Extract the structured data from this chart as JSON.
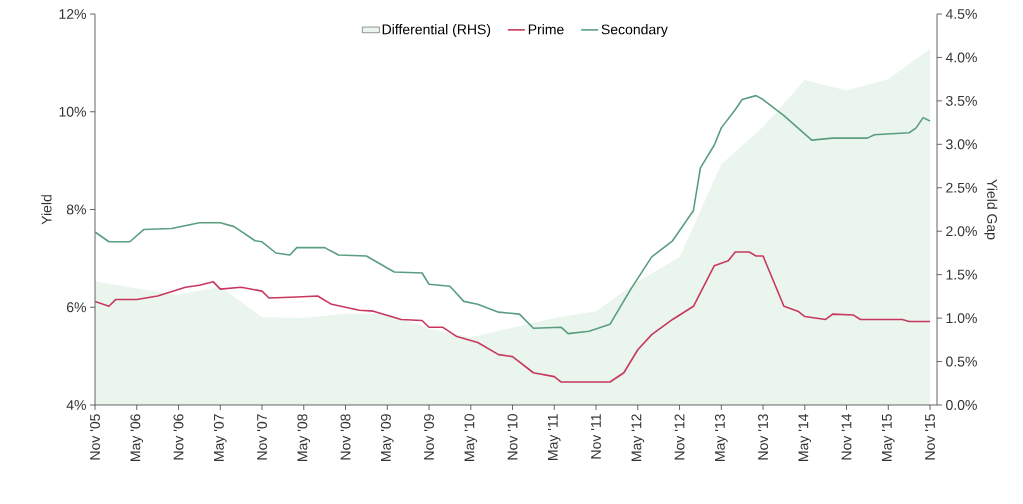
{
  "chart_data": {
    "type": "line",
    "ylabel": "Yield",
    "y2label": "Yield Gap",
    "legend": "top",
    "xlim": [
      "2005-11",
      "2015-12"
    ],
    "xticks": [
      {
        "value": "2005-11",
        "label": "Nov '05"
      },
      {
        "value": "2006-05",
        "label": "May '06"
      },
      {
        "value": "2006-11",
        "label": "Nov '06"
      },
      {
        "value": "2007-05",
        "label": "May '07"
      },
      {
        "value": "2007-11",
        "label": "Nov '07"
      },
      {
        "value": "2008-05",
        "label": "May '08"
      },
      {
        "value": "2008-11",
        "label": "Nov '08"
      },
      {
        "value": "2009-05",
        "label": "May '09"
      },
      {
        "value": "2009-11",
        "label": "Nov '09"
      },
      {
        "value": "2010-05",
        "label": "May '10"
      },
      {
        "value": "2010-11",
        "label": "Nov '10"
      },
      {
        "value": "2011-05",
        "label": "May '11"
      },
      {
        "value": "2011-11",
        "label": "Nov '11"
      },
      {
        "value": "2012-05",
        "label": "May '12"
      },
      {
        "value": "2012-11",
        "label": "Nov '12"
      },
      {
        "value": "2013-05",
        "label": "May '13"
      },
      {
        "value": "2013-11",
        "label": "Nov '13"
      },
      {
        "value": "2014-05",
        "label": "May '14"
      },
      {
        "value": "2014-11",
        "label": "Nov '14"
      },
      {
        "value": "2015-05",
        "label": "May '15"
      },
      {
        "value": "2015-11",
        "label": "Nov '15"
      }
    ],
    "ylim": [
      4,
      12
    ],
    "yticks": [
      {
        "value": 4,
        "label": "4%"
      },
      {
        "value": 6,
        "label": "6%"
      },
      {
        "value": 8,
        "label": "8%"
      },
      {
        "value": 10,
        "label": "10%"
      },
      {
        "value": 12,
        "label": "12%"
      }
    ],
    "y2lim": [
      0,
      4.5
    ],
    "y2ticks": [
      {
        "value": 0,
        "label": "0.0%"
      },
      {
        "value": 0.5,
        "label": "0.5%"
      },
      {
        "value": 1,
        "label": "1.0%"
      },
      {
        "value": 1.5,
        "label": "1.5%"
      },
      {
        "value": 2,
        "label": "2.0%"
      },
      {
        "value": 2.5,
        "label": "2.5%"
      },
      {
        "value": 3,
        "label": "3.0%"
      },
      {
        "value": 3.5,
        "label": "3.5%"
      },
      {
        "value": 4,
        "label": "4.0%"
      },
      {
        "value": 4.5,
        "label": "4.5%"
      }
    ],
    "series": [
      {
        "name": "Differential (RHS)",
        "type": "area",
        "axis": "y2",
        "color": "#eaf5ee",
        "x": [
          "2005-11",
          "2006-05",
          "2006-11",
          "2007-05",
          "2007-11",
          "2008-05",
          "2008-11",
          "2009-05",
          "2009-11",
          "2010-05",
          "2010-11",
          "2011-05",
          "2011-11",
          "2012-05",
          "2012-11",
          "2013-05",
          "2013-11",
          "2014-05",
          "2014-11",
          "2015-05",
          "2015-11"
        ],
        "values": [
          1.42,
          1.34,
          1.27,
          1.36,
          1.01,
          1.0,
          1.05,
          1.05,
          0.88,
          0.78,
          0.89,
          1.0,
          1.08,
          1.42,
          1.7,
          2.77,
          3.2,
          3.74,
          3.62,
          3.75,
          4.1
        ]
      },
      {
        "name": "Prime",
        "color": "#c8385e",
        "x": [
          "2005-11",
          "2006-01",
          "2006-02",
          "2006-05",
          "2006-08",
          "2006-12",
          "2007-02",
          "2007-04",
          "2007-05",
          "2007-08",
          "2007-11",
          "2007-12",
          "2008-04",
          "2008-07",
          "2008-09",
          "2009-01",
          "2009-03",
          "2009-07",
          "2009-10",
          "2009-11",
          "2010-01",
          "2010-03",
          "2010-06",
          "2010-09",
          "2010-11",
          "2011-02",
          "2011-05",
          "2011-06",
          "2012-01",
          "2012-03",
          "2012-05",
          "2012-07",
          "2012-10",
          "2013-01",
          "2013-04",
          "2013-06",
          "2013-07",
          "2013-09",
          "2013-10",
          "2013-11",
          "2014-02",
          "2014-04",
          "2014-05",
          "2014-08",
          "2014-09",
          "2014-12",
          "2015-01",
          "2015-07",
          "2015-08",
          "2015-11"
        ],
        "values": [
          6.12,
          6.02,
          6.16,
          6.16,
          6.23,
          6.41,
          6.45,
          6.52,
          6.37,
          6.41,
          6.33,
          6.19,
          6.21,
          6.23,
          6.06,
          5.94,
          5.92,
          5.75,
          5.73,
          5.59,
          5.59,
          5.4,
          5.28,
          5.03,
          4.99,
          4.66,
          4.58,
          4.47,
          4.47,
          4.66,
          5.13,
          5.44,
          5.75,
          6.02,
          6.85,
          6.95,
          7.13,
          7.13,
          7.05,
          7.05,
          6.02,
          5.92,
          5.81,
          5.75,
          5.86,
          5.84,
          5.75,
          5.75,
          5.71,
          5.71
        ]
      },
      {
        "name": "Secondary",
        "color": "#5a9e80",
        "x": [
          "2005-11",
          "2006-01",
          "2006-04",
          "2006-06",
          "2006-10",
          "2007-02",
          "2007-05",
          "2007-07",
          "2007-10",
          "2007-11",
          "2008-01",
          "2008-03",
          "2008-04",
          "2008-08",
          "2008-10",
          "2009-02",
          "2009-06",
          "2009-10",
          "2009-11",
          "2010-02",
          "2010-04",
          "2010-06",
          "2010-09",
          "2010-12",
          "2011-02",
          "2011-06",
          "2011-07",
          "2011-10",
          "2012-01",
          "2012-04",
          "2012-07",
          "2012-10",
          "2013-01",
          "2013-02",
          "2013-04",
          "2013-05",
          "2013-07",
          "2013-08",
          "2013-10",
          "2013-11",
          "2014-02",
          "2014-04",
          "2014-06",
          "2014-09",
          "2015-02",
          "2015-03",
          "2015-08",
          "2015-09",
          "2015-10",
          "2015-11"
        ],
        "values": [
          7.54,
          7.34,
          7.34,
          7.59,
          7.61,
          7.73,
          7.73,
          7.65,
          7.36,
          7.34,
          7.11,
          7.07,
          7.22,
          7.22,
          7.07,
          7.05,
          6.72,
          6.7,
          6.47,
          6.43,
          6.12,
          6.06,
          5.9,
          5.86,
          5.57,
          5.59,
          5.46,
          5.51,
          5.65,
          6.37,
          7.03,
          7.36,
          7.98,
          8.85,
          9.32,
          9.67,
          10.04,
          10.25,
          10.33,
          10.25,
          9.92,
          9.67,
          9.42,
          9.46,
          9.46,
          9.53,
          9.57,
          9.67,
          9.88,
          9.81
        ]
      }
    ]
  }
}
